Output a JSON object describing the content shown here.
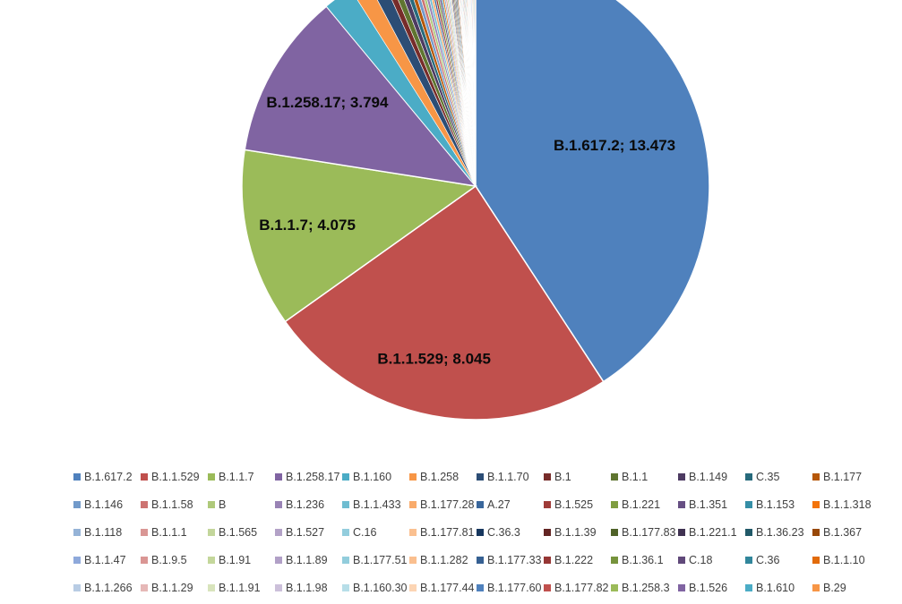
{
  "chart_data": {
    "type": "pie",
    "slices": [
      {
        "label": "B.1.617.2; 13.473",
        "name": "B.1.617.2",
        "value": 13.473,
        "color": "#4F81BD"
      },
      {
        "label": "B.1.1.529; 8.045",
        "name": "B.1.1.529",
        "value": 8.045,
        "color": "#C0504D"
      },
      {
        "label": "B.1.1.7; 4.075",
        "name": "B.1.1.7",
        "value": 4.075,
        "color": "#9BBB59"
      },
      {
        "label": "B.1.258.17; 3.794",
        "name": "B.1.258.17",
        "value": 3.794,
        "color": "#8064A2"
      },
      {
        "label": "",
        "name": "B.1.160",
        "value": 0.67,
        "color": "#4BACC6"
      },
      {
        "label": "",
        "name": "B.1.258",
        "value": 0.42,
        "color": "#F79646"
      },
      {
        "label": "",
        "name": "B.1.1.70",
        "value": 0.33,
        "color": "#2C4D75"
      },
      {
        "label": "",
        "name": "B.1",
        "value": 0.15,
        "color": "#772C2A"
      },
      {
        "label": "",
        "name": "B.1.1",
        "value": 0.15,
        "color": "#5F7530"
      },
      {
        "label": "",
        "name": "B.1.149",
        "value": 0.13,
        "color": "#4D3B62"
      },
      {
        "label": "",
        "name": "C.35",
        "value": 0.11,
        "color": "#276A7C"
      },
      {
        "label": "",
        "name": "B.1.177",
        "value": 0.1,
        "color": "#B65708"
      },
      {
        "label": "",
        "name": "B.1.146",
        "value": 0.09,
        "color": "#729ACA"
      },
      {
        "label": "",
        "name": "B.1.1.58",
        "value": 0.08,
        "color": "#CD7371"
      },
      {
        "label": "",
        "name": "B",
        "value": 0.07,
        "color": "#AFC97A"
      },
      {
        "label": "",
        "name": "B.1.236",
        "value": 0.07,
        "color": "#9983B5"
      },
      {
        "label": "",
        "name": "B.1.1.433",
        "value": 0.06,
        "color": "#6FBDD1"
      },
      {
        "label": "",
        "name": "B.1.177.28",
        "value": 0.06,
        "color": "#F9AB6B"
      },
      {
        "label": "",
        "name": "A.27",
        "value": 0.05,
        "color": "#3A679C"
      },
      {
        "label": "",
        "name": "B.1.525",
        "value": 0.05,
        "color": "#9F3B38"
      },
      {
        "label": "",
        "name": "B.1.221",
        "value": 0.05,
        "color": "#7F9D40"
      },
      {
        "label": "",
        "name": "B.1.351",
        "value": 0.05,
        "color": "#664F83"
      },
      {
        "label": "",
        "name": "B.1.153",
        "value": 0.04,
        "color": "#358EA6"
      },
      {
        "label": "",
        "name": "B.1.1.318",
        "value": 0.04,
        "color": "#F3740B"
      },
      {
        "label": "",
        "name": "B.1.118",
        "value": 0.04,
        "color": "#95B3D7"
      },
      {
        "label": "",
        "name": "B.1.1.1",
        "value": 0.04,
        "color": "#D99694"
      },
      {
        "label": "",
        "name": "B.1.565",
        "value": 0.04,
        "color": "#C3D69B"
      },
      {
        "label": "",
        "name": "B.1.527",
        "value": 0.03,
        "color": "#B3A2C7"
      },
      {
        "label": "",
        "name": "C.16",
        "value": 0.03,
        "color": "#93CDDD"
      },
      {
        "label": "",
        "name": "B.1.177.81",
        "value": 0.03,
        "color": "#FAC090"
      },
      {
        "label": "",
        "name": "C.36.3",
        "value": 0.03,
        "color": "#17375E"
      },
      {
        "label": "",
        "name": "B.1.1.39",
        "value": 0.03,
        "color": "#632523"
      },
      {
        "label": "",
        "name": "B.1.177.83",
        "value": 0.03,
        "color": "#4F6228"
      },
      {
        "label": "",
        "name": "B.1.221.1",
        "value": 0.03,
        "color": "#3F3151"
      },
      {
        "label": "",
        "name": "B.1.36.23",
        "value": 0.03,
        "color": "#215968"
      },
      {
        "label": "",
        "name": "B.1.367",
        "value": 0.03,
        "color": "#984807"
      },
      {
        "label": "",
        "name": "B.1.1.47",
        "value": 0.02,
        "color": "#8EA9DB"
      },
      {
        "label": "",
        "name": "B.1.9.5",
        "value": 0.02,
        "color": "#DA9694"
      },
      {
        "label": "",
        "name": "B.1.91",
        "value": 0.02,
        "color": "#C4D79B"
      },
      {
        "label": "",
        "name": "B.1.1.89",
        "value": 0.02,
        "color": "#B1A0C7"
      },
      {
        "label": "",
        "name": "B.1.177.51",
        "value": 0.02,
        "color": "#92CDDC"
      },
      {
        "label": "",
        "name": "B.1.1.282",
        "value": 0.02,
        "color": "#FABF8F"
      },
      {
        "label": "",
        "name": "B.1.177.33",
        "value": 0.02,
        "color": "#366092"
      },
      {
        "label": "",
        "name": "B.1.222",
        "value": 0.02,
        "color": "#963634"
      },
      {
        "label": "",
        "name": "B.1.36.1",
        "value": 0.02,
        "color": "#76933C"
      },
      {
        "label": "",
        "name": "C.18",
        "value": 0.02,
        "color": "#60497A"
      },
      {
        "label": "",
        "name": "C.36",
        "value": 0.02,
        "color": "#31869B"
      },
      {
        "label": "",
        "name": "B.1.1.10",
        "value": 0.02,
        "color": "#E26B0A"
      },
      {
        "label": "",
        "name": "B.1.1.266",
        "value": 0.02,
        "color": "#B8CCE4"
      },
      {
        "label": "",
        "name": "B.1.1.29",
        "value": 0.02,
        "color": "#E6B8B7"
      },
      {
        "label": "",
        "name": "B.1.1.91",
        "value": 0.02,
        "color": "#D8E4BC"
      },
      {
        "label": "",
        "name": "B.1.1.98",
        "value": 0.02,
        "color": "#CCC0DA"
      },
      {
        "label": "",
        "name": "B.1.160.30",
        "value": 0.02,
        "color": "#B7DEE8"
      },
      {
        "label": "",
        "name": "B.1.177.44",
        "value": 0.02,
        "color": "#FCD5B4"
      },
      {
        "label": "",
        "name": "B.1.177.60",
        "value": 0.02,
        "color": "#4F81BD"
      },
      {
        "label": "",
        "name": "B.1.177.82",
        "value": 0.02,
        "color": "#C0504D"
      },
      {
        "label": "",
        "name": "B.1.258.3",
        "value": 0.02,
        "color": "#9BBB59"
      },
      {
        "label": "",
        "name": "B.1.526",
        "value": 0.02,
        "color": "#8064A2"
      },
      {
        "label": "",
        "name": "B.1.610",
        "value": 0.02,
        "color": "#4BACC6"
      },
      {
        "label": "",
        "name": "B.29",
        "value": 0.02,
        "color": "#F79646"
      }
    ],
    "legend_position": "bottom",
    "legend_rows": [
      [
        "B.1.617.2",
        "B.1.1.529",
        "B.1.1.7",
        "B.1.258.17",
        "B.1.160",
        "B.1.258",
        "B.1.1.70",
        "B.1",
        "B.1.1",
        "B.1.149",
        "C.35",
        "B.1.177"
      ],
      [
        "B.1.146",
        "B.1.1.58",
        "B",
        "B.1.236",
        "B.1.1.433",
        "B.1.177.28",
        "A.27",
        "B.1.525",
        "B.1.221",
        "B.1.351",
        "B.1.153",
        "B.1.1.318"
      ],
      [
        "B.1.118",
        "B.1.1.1",
        "B.1.565",
        "B.1.527",
        "C.16",
        "B.1.177.81",
        "C.36.3",
        "B.1.1.39",
        "B.1.177.83",
        "B.1.221.1",
        "B.1.36.23",
        "B.1.367"
      ],
      [
        "B.1.1.47",
        "B.1.9.5",
        "B.1.91",
        "B.1.1.89",
        "B.1.177.51",
        "B.1.1.282",
        "B.1.177.33",
        "B.1.222",
        "B.1.36.1",
        "C.18",
        "C.36",
        "B.1.1.10"
      ],
      [
        "B.1.1.266",
        "B.1.1.29",
        "B.1.1.91",
        "B.1.1.98",
        "B.1.160.30",
        "B.1.177.44",
        "B.1.177.60",
        "B.1.177.82",
        "B.1.258.3",
        "B.1.526",
        "B.1.610",
        "B.29"
      ]
    ]
  }
}
